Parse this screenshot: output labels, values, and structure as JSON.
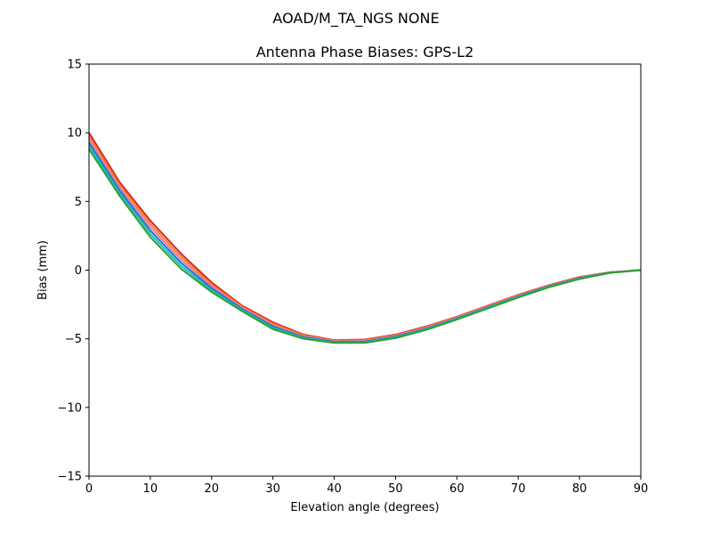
{
  "suptitle": "AOAD/M_TA_NGS   NONE",
  "chart_data": {
    "type": "line",
    "title": "Antenna Phase Biases: GPS-L2",
    "xlabel": "Elevation angle (degrees)",
    "ylabel": "Bias (mm)",
    "xlim": [
      0,
      90
    ],
    "ylim": [
      -15,
      15
    ],
    "xticks": [
      "0",
      "10",
      "20",
      "30",
      "40",
      "50",
      "60",
      "70",
      "80",
      "90"
    ],
    "yticks": [
      "15",
      "10",
      "5",
      "0",
      "−5",
      "−10",
      "−15"
    ],
    "grid": false,
    "x": [
      0,
      5,
      10,
      15,
      20,
      25,
      30,
      35,
      40,
      45,
      50,
      55,
      60,
      65,
      70,
      75,
      80,
      85,
      90
    ],
    "series": [
      {
        "color": "#d62728",
        "values": [
          10.0,
          6.4,
          3.6,
          1.2,
          -0.9,
          -2.6,
          -3.8,
          -4.7,
          -5.1,
          -5.05,
          -4.7,
          -4.1,
          -3.4,
          -2.6,
          -1.8,
          -1.1,
          -0.5,
          -0.15,
          0
        ]
      },
      {
        "color": "#ff7f0e",
        "values": [
          9.76,
          6.2,
          3.36,
          0.98,
          -1.04,
          -2.68,
          -3.9,
          -4.76,
          -5.14,
          -5.1,
          -4.75,
          -4.15,
          -3.44,
          -2.64,
          -1.84,
          -1.13,
          -0.53,
          -0.16,
          0
        ]
      },
      {
        "color": "#e377c2",
        "values": [
          9.52,
          6.0,
          3.12,
          0.76,
          -1.18,
          -2.76,
          -4.0,
          -4.82,
          -5.18,
          -5.15,
          -4.8,
          -4.2,
          -3.48,
          -2.68,
          -1.88,
          -1.16,
          -0.56,
          -0.17,
          0
        ]
      },
      {
        "color": "#1f77b4",
        "values": [
          9.28,
          5.8,
          2.88,
          0.54,
          -1.32,
          -2.84,
          -4.1,
          -4.88,
          -5.22,
          -5.2,
          -4.85,
          -4.25,
          -3.52,
          -2.72,
          -1.92,
          -1.19,
          -0.59,
          -0.18,
          0
        ]
      },
      {
        "color": "#17becf",
        "values": [
          9.04,
          5.6,
          2.64,
          0.32,
          -1.46,
          -2.92,
          -4.2,
          -4.94,
          -5.26,
          -5.25,
          -4.9,
          -4.3,
          -3.56,
          -2.76,
          -1.96,
          -1.22,
          -0.62,
          -0.19,
          0
        ]
      },
      {
        "color": "#2ca02c",
        "values": [
          8.8,
          5.4,
          2.4,
          0.1,
          -1.6,
          -3.0,
          -4.3,
          -5.0,
          -5.3,
          -5.3,
          -4.95,
          -4.35,
          -3.6,
          -2.8,
          -2.0,
          -1.25,
          -0.65,
          -0.2,
          0
        ]
      }
    ]
  }
}
